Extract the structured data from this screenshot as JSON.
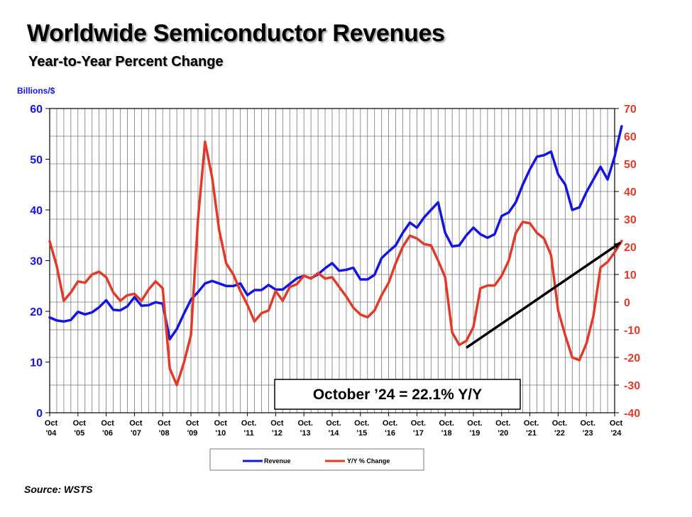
{
  "title": "Worldwide Semiconductor Revenues",
  "subtitle": "Year-to-Year Percent Change",
  "source": "Source: WSTS",
  "chart_data": {
    "type": "line",
    "left_axis": {
      "label": "Billions/$",
      "range": [
        0,
        60
      ],
      "ticks": [
        "0",
        "10",
        "20",
        "30",
        "40",
        "50",
        "60"
      ],
      "color": "#1515e0"
    },
    "right_axis": {
      "range": [
        -40,
        70
      ],
      "ticks": [
        "-40",
        "-30",
        "-20",
        "-10",
        "0",
        "10",
        "20",
        "30",
        "40",
        "50",
        "60",
        "70"
      ],
      "color": "#e23a2a"
    },
    "x_labels": [
      [
        "Oct",
        "'04"
      ],
      [
        "Oct",
        "'05"
      ],
      [
        "Oct",
        "'06"
      ],
      [
        "Oct",
        "'07"
      ],
      [
        "Oct",
        "'08"
      ],
      [
        "Oct",
        "'09"
      ],
      [
        "Oct",
        "'10"
      ],
      [
        "Oct.",
        "'11"
      ],
      [
        "Oct",
        "'12"
      ],
      [
        "Oct.",
        "'13"
      ],
      [
        "Oct.",
        "'14"
      ],
      [
        "Oct.",
        "'15"
      ],
      [
        "Oct.",
        "'16"
      ],
      [
        "Oct.",
        "'17"
      ],
      [
        "Oct.",
        "'18"
      ],
      [
        "Oct.",
        "'19"
      ],
      [
        "Oct.",
        "'20"
      ],
      [
        "Oct.",
        "'21"
      ],
      [
        "Oct.",
        "'22"
      ],
      [
        "Oct.",
        "'23"
      ],
      [
        "Oct",
        "'24"
      ]
    ],
    "grid": true,
    "legend_position": "bottom-center",
    "series": [
      {
        "name": "Revenue",
        "axis": "left",
        "color": "#1515e0",
        "points": [
          [
            0,
            18.8
          ],
          [
            0.25,
            18.2
          ],
          [
            0.5,
            18.0
          ],
          [
            0.75,
            18.3
          ],
          [
            1.0,
            19.9
          ],
          [
            1.25,
            19.4
          ],
          [
            1.5,
            19.8
          ],
          [
            1.75,
            20.8
          ],
          [
            2.0,
            22.2
          ],
          [
            2.25,
            20.3
          ],
          [
            2.5,
            20.2
          ],
          [
            2.75,
            21.0
          ],
          [
            3.0,
            22.8
          ],
          [
            3.25,
            21.1
          ],
          [
            3.5,
            21.2
          ],
          [
            3.75,
            21.8
          ],
          [
            4.0,
            21.5
          ],
          [
            4.25,
            14.5
          ],
          [
            4.5,
            16.5
          ],
          [
            4.75,
            19.5
          ],
          [
            5.0,
            22.3
          ],
          [
            5.25,
            23.8
          ],
          [
            5.5,
            25.5
          ],
          [
            5.75,
            26.0
          ],
          [
            6.0,
            25.5
          ],
          [
            6.25,
            25.0
          ],
          [
            6.5,
            25.0
          ],
          [
            6.75,
            25.5
          ],
          [
            7.0,
            23.2
          ],
          [
            7.25,
            24.2
          ],
          [
            7.5,
            24.2
          ],
          [
            7.75,
            25.2
          ],
          [
            8.0,
            24.3
          ],
          [
            8.25,
            24.3
          ],
          [
            8.5,
            25.4
          ],
          [
            8.75,
            26.5
          ],
          [
            9.0,
            27.0
          ],
          [
            9.25,
            26.5
          ],
          [
            9.5,
            27.3
          ],
          [
            9.75,
            28.5
          ],
          [
            10.0,
            29.5
          ],
          [
            10.25,
            28.0
          ],
          [
            10.5,
            28.2
          ],
          [
            10.75,
            28.6
          ],
          [
            11.0,
            26.3
          ],
          [
            11.25,
            26.3
          ],
          [
            11.5,
            27.2
          ],
          [
            11.75,
            30.5
          ],
          [
            12.0,
            31.8
          ],
          [
            12.25,
            33.0
          ],
          [
            12.5,
            35.5
          ],
          [
            12.75,
            37.5
          ],
          [
            13.0,
            36.5
          ],
          [
            13.25,
            38.5
          ],
          [
            13.5,
            40.0
          ],
          [
            13.75,
            41.5
          ],
          [
            14.0,
            35.5
          ],
          [
            14.25,
            32.8
          ],
          [
            14.5,
            33.0
          ],
          [
            14.75,
            35.0
          ],
          [
            15.0,
            36.5
          ],
          [
            15.25,
            35.2
          ],
          [
            15.5,
            34.5
          ],
          [
            15.75,
            35.2
          ],
          [
            16.0,
            38.8
          ],
          [
            16.25,
            39.5
          ],
          [
            16.5,
            41.5
          ],
          [
            16.75,
            45.0
          ],
          [
            17.0,
            48.0
          ],
          [
            17.25,
            50.5
          ],
          [
            17.5,
            50.8
          ],
          [
            17.75,
            51.5
          ],
          [
            18.0,
            47.0
          ],
          [
            18.25,
            45.0
          ],
          [
            18.5,
            40.0
          ],
          [
            18.75,
            40.5
          ],
          [
            19.0,
            43.5
          ],
          [
            19.25,
            46.0
          ],
          [
            19.5,
            48.5
          ],
          [
            19.75,
            46.0
          ],
          [
            20.0,
            50.5
          ],
          [
            20.25,
            56.5
          ]
        ]
      },
      {
        "name": "Y/Y % Change",
        "axis": "right",
        "color": "#e23a2a",
        "points": [
          [
            0,
            22.0
          ],
          [
            0.25,
            13.0
          ],
          [
            0.5,
            0.5
          ],
          [
            0.75,
            3.5
          ],
          [
            1.0,
            7.5
          ],
          [
            1.25,
            7.0
          ],
          [
            1.5,
            10.0
          ],
          [
            1.75,
            11.0
          ],
          [
            2.0,
            9.0
          ],
          [
            2.25,
            3.5
          ],
          [
            2.5,
            0.5
          ],
          [
            2.75,
            2.5
          ],
          [
            3.0,
            3.0
          ],
          [
            3.25,
            0.5
          ],
          [
            3.5,
            4.5
          ],
          [
            3.75,
            7.5
          ],
          [
            4.0,
            5.0
          ],
          [
            4.25,
            -24.0
          ],
          [
            4.5,
            -30.0
          ],
          [
            4.75,
            -22.0
          ],
          [
            5.0,
            -12.0
          ],
          [
            5.25,
            30.0
          ],
          [
            5.5,
            58.0
          ],
          [
            5.75,
            45.0
          ],
          [
            6.0,
            26.0
          ],
          [
            6.25,
            14.0
          ],
          [
            6.5,
            10.0
          ],
          [
            6.75,
            4.0
          ],
          [
            7.0,
            -1.0
          ],
          [
            7.25,
            -7.0
          ],
          [
            7.5,
            -4.0
          ],
          [
            7.75,
            -3.0
          ],
          [
            8.0,
            4.0
          ],
          [
            8.25,
            0.5
          ],
          [
            8.5,
            5.5
          ],
          [
            8.75,
            6.5
          ],
          [
            9.0,
            9.5
          ],
          [
            9.25,
            8.5
          ],
          [
            9.5,
            10.5
          ],
          [
            9.75,
            8.5
          ],
          [
            10.0,
            9.0
          ],
          [
            10.25,
            5.5
          ],
          [
            10.5,
            2.0
          ],
          [
            10.75,
            -2.0
          ],
          [
            11.0,
            -4.5
          ],
          [
            11.25,
            -5.5
          ],
          [
            11.5,
            -3.0
          ],
          [
            11.75,
            2.5
          ],
          [
            12.0,
            7.0
          ],
          [
            12.25,
            14.0
          ],
          [
            12.5,
            20.0
          ],
          [
            12.75,
            24.0
          ],
          [
            13.0,
            23.0
          ],
          [
            13.25,
            21.0
          ],
          [
            13.5,
            20.5
          ],
          [
            13.75,
            15.0
          ],
          [
            14.0,
            9.0
          ],
          [
            14.25,
            -11.0
          ],
          [
            14.5,
            -15.5
          ],
          [
            14.75,
            -14.0
          ],
          [
            15.0,
            -9.0
          ],
          [
            15.25,
            5.0
          ],
          [
            15.5,
            6.0
          ],
          [
            15.75,
            6.0
          ],
          [
            16.0,
            9.5
          ],
          [
            16.25,
            15.0
          ],
          [
            16.5,
            25.0
          ],
          [
            16.75,
            29.0
          ],
          [
            17.0,
            28.5
          ],
          [
            17.25,
            25.0
          ],
          [
            17.5,
            23.0
          ],
          [
            17.75,
            17.0
          ],
          [
            18.0,
            -3.0
          ],
          [
            18.25,
            -12.0
          ],
          [
            18.5,
            -20.0
          ],
          [
            18.75,
            -21.0
          ],
          [
            19.0,
            -15.0
          ],
          [
            19.25,
            -5.0
          ],
          [
            19.5,
            12.5
          ],
          [
            19.75,
            14.5
          ],
          [
            20.0,
            18.0
          ],
          [
            20.25,
            22.1
          ]
        ]
      }
    ],
    "annotation": {
      "text": "October ’24 = 22.1% Y/Y",
      "arrow_from": [
        14.75,
        -16.5
      ],
      "arrow_to": [
        20.2,
        21.5
      ]
    }
  }
}
